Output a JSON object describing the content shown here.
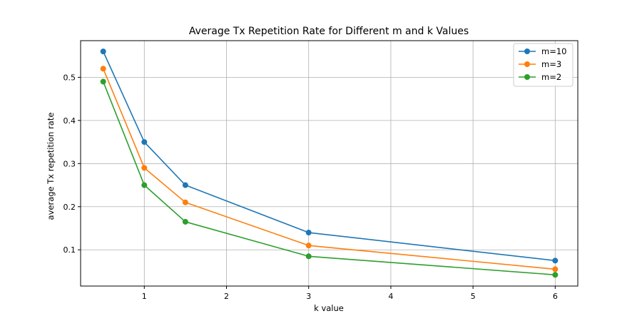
{
  "chart_data": {
    "type": "line",
    "title": "Average Tx Repetition Rate for Different m and k Values",
    "xlabel": "k value",
    "ylabel": "average Tx repetition rate",
    "x": [
      0.5,
      1,
      1.5,
      3,
      6
    ],
    "xlim": [
      0.225,
      6.275
    ],
    "ylim": [
      0.016,
      0.585
    ],
    "xticks": [
      1,
      2,
      3,
      4,
      5,
      6
    ],
    "yticks": [
      0.1,
      0.2,
      0.3,
      0.4,
      0.5
    ],
    "xtick_labels": [
      "1",
      "2",
      "3",
      "4",
      "5",
      "6"
    ],
    "ytick_labels": [
      "0.1",
      "0.2",
      "0.3",
      "0.4",
      "0.5"
    ],
    "grid": true,
    "legend_position": "top-right",
    "series": [
      {
        "name": "m=10",
        "color": "#1f77b4",
        "values": [
          0.56,
          0.35,
          0.25,
          0.14,
          0.075
        ]
      },
      {
        "name": "m=3",
        "color": "#ff7f0e",
        "values": [
          0.52,
          0.29,
          0.21,
          0.11,
          0.055
        ]
      },
      {
        "name": "m=2",
        "color": "#2ca02c",
        "values": [
          0.49,
          0.25,
          0.165,
          0.085,
          0.042
        ]
      }
    ]
  }
}
